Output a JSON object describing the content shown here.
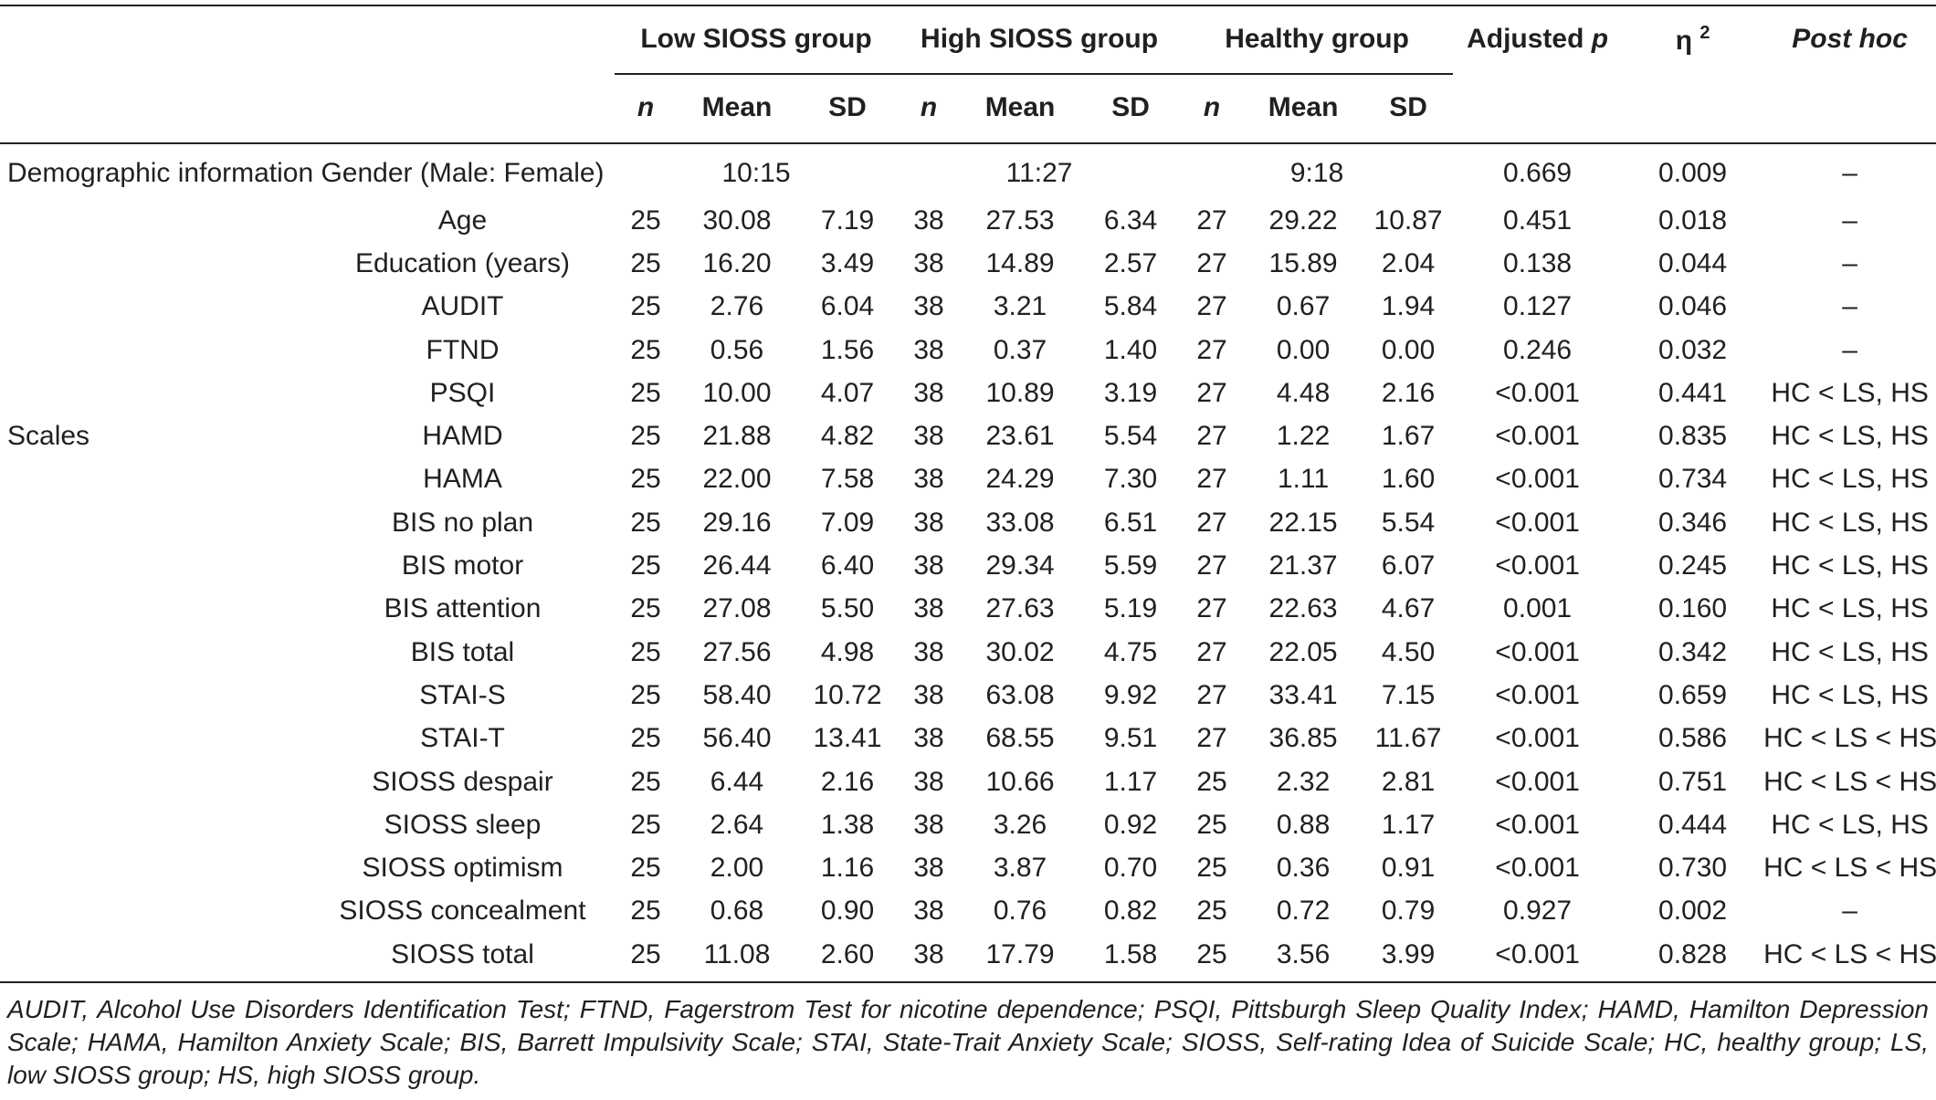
{
  "header": {
    "groups": [
      "Low SIOSS group",
      "High SIOSS group",
      "Healthy group"
    ],
    "adjusted_p_label": "Adjusted",
    "adjusted_p_symbol": "p",
    "eta_symbol": "η",
    "eta_sup": "2",
    "post_hoc": "Post hoc",
    "sub": {
      "n": "n",
      "mean": "Mean",
      "sd": "SD"
    }
  },
  "sections": {
    "demographic": "Demographic information",
    "scales": "Scales"
  },
  "rows": [
    {
      "label": "Gender (Male: Female)",
      "merged": [
        "10:15",
        "11:27",
        "9:18"
      ],
      "p": "0.669",
      "eta": "0.009",
      "posthoc": "–"
    },
    {
      "label": "Age",
      "c": [
        "25",
        "30.08",
        "7.19",
        "38",
        "27.53",
        "6.34",
        "27",
        "29.22",
        "10.87"
      ],
      "p": "0.451",
      "eta": "0.018",
      "posthoc": "–"
    },
    {
      "label": "Education (years)",
      "c": [
        "25",
        "16.20",
        "3.49",
        "38",
        "14.89",
        "2.57",
        "27",
        "15.89",
        "2.04"
      ],
      "p": "0.138",
      "eta": "0.044",
      "posthoc": "–"
    },
    {
      "label": "AUDIT",
      "c": [
        "25",
        "2.76",
        "6.04",
        "38",
        "3.21",
        "5.84",
        "27",
        "0.67",
        "1.94"
      ],
      "p": "0.127",
      "eta": "0.046",
      "posthoc": "–"
    },
    {
      "label": "FTND",
      "c": [
        "25",
        "0.56",
        "1.56",
        "38",
        "0.37",
        "1.40",
        "27",
        "0.00",
        "0.00"
      ],
      "p": "0.246",
      "eta": "0.032",
      "posthoc": "–"
    },
    {
      "label": "PSQI",
      "c": [
        "25",
        "10.00",
        "4.07",
        "38",
        "10.89",
        "3.19",
        "27",
        "4.48",
        "2.16"
      ],
      "p": "<0.001",
      "eta": "0.441",
      "posthoc": "HC < LS, HS"
    },
    {
      "label": "HAMD",
      "c": [
        "25",
        "21.88",
        "4.82",
        "38",
        "23.61",
        "5.54",
        "27",
        "1.22",
        "1.67"
      ],
      "p": "<0.001",
      "eta": "0.835",
      "posthoc": "HC < LS, HS"
    },
    {
      "label": "HAMA",
      "c": [
        "25",
        "22.00",
        "7.58",
        "38",
        "24.29",
        "7.30",
        "27",
        "1.11",
        "1.60"
      ],
      "p": "<0.001",
      "eta": "0.734",
      "posthoc": "HC < LS, HS"
    },
    {
      "label": "BIS no plan",
      "c": [
        "25",
        "29.16",
        "7.09",
        "38",
        "33.08",
        "6.51",
        "27",
        "22.15",
        "5.54"
      ],
      "p": "<0.001",
      "eta": "0.346",
      "posthoc": "HC < LS, HS"
    },
    {
      "label": "BIS motor",
      "c": [
        "25",
        "26.44",
        "6.40",
        "38",
        "29.34",
        "5.59",
        "27",
        "21.37",
        "6.07"
      ],
      "p": "<0.001",
      "eta": "0.245",
      "posthoc": "HC < LS, HS"
    },
    {
      "label": "BIS attention",
      "c": [
        "25",
        "27.08",
        "5.50",
        "38",
        "27.63",
        "5.19",
        "27",
        "22.63",
        "4.67"
      ],
      "p": "0.001",
      "eta": "0.160",
      "posthoc": "HC < LS, HS"
    },
    {
      "label": "BIS total",
      "c": [
        "25",
        "27.56",
        "4.98",
        "38",
        "30.02",
        "4.75",
        "27",
        "22.05",
        "4.50"
      ],
      "p": "<0.001",
      "eta": "0.342",
      "posthoc": "HC < LS, HS"
    },
    {
      "label": "STAI-S",
      "c": [
        "25",
        "58.40",
        "10.72",
        "38",
        "63.08",
        "9.92",
        "27",
        "33.41",
        "7.15"
      ],
      "p": "<0.001",
      "eta": "0.659",
      "posthoc": "HC < LS, HS"
    },
    {
      "label": "STAI-T",
      "c": [
        "25",
        "56.40",
        "13.41",
        "38",
        "68.55",
        "9.51",
        "27",
        "36.85",
        "11.67"
      ],
      "p": "<0.001",
      "eta": "0.586",
      "posthoc": "HC < LS < HS"
    },
    {
      "label": "SIOSS despair",
      "c": [
        "25",
        "6.44",
        "2.16",
        "38",
        "10.66",
        "1.17",
        "25",
        "2.32",
        "2.81"
      ],
      "p": "<0.001",
      "eta": "0.751",
      "posthoc": "HC < LS < HS"
    },
    {
      "label": "SIOSS sleep",
      "c": [
        "25",
        "2.64",
        "1.38",
        "38",
        "3.26",
        "0.92",
        "25",
        "0.88",
        "1.17"
      ],
      "p": "<0.001",
      "eta": "0.444",
      "posthoc": "HC < LS, HS"
    },
    {
      "label": "SIOSS optimism",
      "c": [
        "25",
        "2.00",
        "1.16",
        "38",
        "3.87",
        "0.70",
        "25",
        "0.36",
        "0.91"
      ],
      "p": "<0.001",
      "eta": "0.730",
      "posthoc": "HC < LS < HS"
    },
    {
      "label": "SIOSS concealment",
      "c": [
        "25",
        "0.68",
        "0.90",
        "38",
        "0.76",
        "0.82",
        "25",
        "0.72",
        "0.79"
      ],
      "p": "0.927",
      "eta": "0.002",
      "posthoc": "–"
    },
    {
      "label": "SIOSS total",
      "c": [
        "25",
        "11.08",
        "2.60",
        "38",
        "17.79",
        "1.58",
        "25",
        "3.56",
        "3.99"
      ],
      "p": "<0.001",
      "eta": "0.828",
      "posthoc": "HC < LS < HS"
    }
  ],
  "footnote": "AUDIT, Alcohol Use Disorders Identification Test; FTND, Fagerstrom Test for nicotine dependence; PSQI, Pittsburgh Sleep Quality Index; HAMD, Hamilton Depression Scale; HAMA, Hamilton Anxiety Scale; BIS, Barrett Impulsivity Scale; STAI, State-Trait Anxiety Scale; SIOSS, Self-rating Idea of Suicide Scale; HC, healthy group; LS, low SIOSS group; HS, high SIOSS group."
}
